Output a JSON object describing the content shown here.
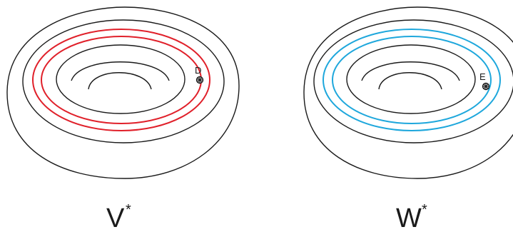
{
  "colors": {
    "outline": "#1a1a1a",
    "red_curve": "#e0202a",
    "blue_curve": "#1ea7dc"
  },
  "left_torus": {
    "caption": "V",
    "caption_superscript": "*",
    "point_label": "D",
    "highlight_curves": 2,
    "highlight_color": "red"
  },
  "right_torus": {
    "caption": "W",
    "caption_superscript": "*",
    "point_label": "E",
    "highlight_curves": 2,
    "highlight_color": "blue"
  }
}
